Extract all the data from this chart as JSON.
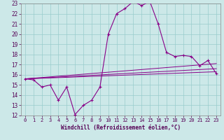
{
  "xlabel": "Windchill (Refroidissement éolien,°C)",
  "bg_color": "#cce8e8",
  "grid_color": "#99cccc",
  "line_color": "#880088",
  "xlim": [
    -0.5,
    23.5
  ],
  "ylim": [
    12,
    23
  ],
  "xticks": [
    0,
    1,
    2,
    3,
    4,
    5,
    6,
    7,
    8,
    9,
    10,
    11,
    12,
    13,
    14,
    15,
    16,
    17,
    18,
    19,
    20,
    21,
    22,
    23
  ],
  "yticks": [
    12,
    13,
    14,
    15,
    16,
    17,
    18,
    19,
    20,
    21,
    22,
    23
  ],
  "main_series_x": [
    0,
    1,
    2,
    3,
    4,
    5,
    6,
    7,
    8,
    9,
    10,
    11,
    12,
    13,
    14,
    15,
    16,
    17,
    18,
    19,
    20,
    21,
    22,
    23
  ],
  "main_series_y": [
    15.6,
    15.5,
    14.8,
    15.0,
    13.5,
    14.8,
    12.1,
    13.0,
    13.5,
    14.8,
    20.0,
    22.0,
    22.5,
    23.2,
    22.8,
    23.2,
    21.0,
    18.2,
    17.8,
    17.9,
    17.8,
    16.9,
    17.4,
    16.1
  ],
  "line1_x": [
    0,
    23
  ],
  "line1_y": [
    15.6,
    16.3
  ],
  "line2_x": [
    0,
    23
  ],
  "line2_y": [
    15.6,
    16.6
  ],
  "line3_x": [
    0,
    23
  ],
  "line3_y": [
    15.6,
    17.1
  ]
}
